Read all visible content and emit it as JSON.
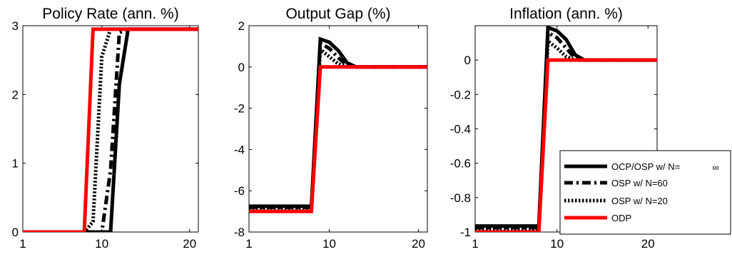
{
  "chart_data": [
    {
      "type": "line",
      "title": "Policy Rate (ann. %)",
      "xlabel": "",
      "ylabel": "",
      "xlim": [
        1,
        21
      ],
      "ylim": [
        0,
        3
      ],
      "xticks": [
        1,
        10,
        20
      ],
      "yticks": [
        0,
        1,
        2,
        3
      ],
      "ytick_labels": [
        "0",
        "1",
        "2",
        "3"
      ],
      "grid": false,
      "x": [
        1,
        2,
        3,
        4,
        5,
        6,
        7,
        8,
        9,
        10,
        11,
        12,
        13,
        14,
        15,
        16,
        17,
        18,
        19,
        20,
        21
      ],
      "series": [
        {
          "name": "OCP/OSP w/ N= ∞",
          "values": [
            0,
            0,
            0,
            0,
            0,
            0,
            0,
            0,
            0,
            0,
            0,
            2.15,
            2.95,
            2.95,
            2.95,
            2.95,
            2.95,
            2.95,
            2.95,
            2.95,
            2.95
          ]
        },
        {
          "name": "OSP w/ N=60",
          "values": [
            0,
            0,
            0,
            0,
            0,
            0,
            0,
            0,
            0,
            0,
            0.9,
            2.9,
            2.95,
            2.95,
            2.95,
            2.95,
            2.95,
            2.95,
            2.95,
            2.95,
            2.95
          ]
        },
        {
          "name": "OSP w/ N=20",
          "values": [
            0,
            0,
            0,
            0,
            0,
            0,
            0,
            0,
            0.15,
            2.55,
            2.95,
            2.95,
            2.95,
            2.95,
            2.95,
            2.95,
            2.95,
            2.95,
            2.95,
            2.95,
            2.95
          ]
        },
        {
          "name": "ODP",
          "values": [
            0,
            0,
            0,
            0,
            0,
            0,
            0,
            0,
            2.95,
            2.95,
            2.95,
            2.95,
            2.95,
            2.95,
            2.95,
            2.95,
            2.95,
            2.95,
            2.95,
            2.95,
            2.95
          ]
        }
      ]
    },
    {
      "type": "line",
      "title": "Output Gap (%)",
      "xlabel": "",
      "ylabel": "",
      "xlim": [
        1,
        21
      ],
      "ylim": [
        -8,
        2
      ],
      "xticks": [
        1,
        10,
        20
      ],
      "yticks": [
        -8,
        -6,
        -4,
        -2,
        0,
        2
      ],
      "ytick_labels": [
        "-8",
        "-6",
        "-4",
        "-2",
        "0",
        "2"
      ],
      "grid": false,
      "x": [
        1,
        2,
        3,
        4,
        5,
        6,
        7,
        8,
        9,
        10,
        11,
        12,
        13,
        14,
        15,
        16,
        17,
        18,
        19,
        20,
        21
      ],
      "series": [
        {
          "name": "OCP/OSP w/ N= ∞",
          "values": [
            -6.75,
            -6.75,
            -6.75,
            -6.75,
            -6.75,
            -6.75,
            -6.75,
            -6.75,
            1.35,
            1.2,
            0.8,
            0.2,
            0,
            0,
            0,
            0,
            0,
            0,
            0,
            0,
            0
          ]
        },
        {
          "name": "OSP w/ N=60",
          "values": [
            -6.8,
            -6.8,
            -6.8,
            -6.8,
            -6.8,
            -6.8,
            -6.8,
            -6.8,
            1.15,
            0.9,
            0.45,
            0.08,
            0,
            0,
            0,
            0,
            0,
            0,
            0,
            0,
            0
          ]
        },
        {
          "name": "OSP w/ N=20",
          "values": [
            -6.9,
            -6.9,
            -6.9,
            -6.9,
            -6.9,
            -6.9,
            -6.9,
            -6.9,
            0.85,
            0.5,
            0.15,
            0,
            0,
            0,
            0,
            0,
            0,
            0,
            0,
            0,
            0
          ]
        },
        {
          "name": "ODP",
          "values": [
            -7.0,
            -7.0,
            -7.0,
            -7.0,
            -7.0,
            -7.0,
            -7.0,
            -7.0,
            0,
            0,
            0,
            0,
            0,
            0,
            0,
            0,
            0,
            0,
            0,
            0,
            0
          ]
        }
      ]
    },
    {
      "type": "line",
      "title": "Inflation (ann. %)",
      "xlabel": "",
      "ylabel": "",
      "xlim": [
        1,
        21
      ],
      "ylim": [
        -1,
        0.2
      ],
      "xticks": [
        1,
        10,
        20
      ],
      "yticks": [
        -1,
        -0.8,
        -0.6,
        -0.4,
        -0.2,
        0
      ],
      "ytick_labels": [
        "-1",
        "-0.8",
        "-0.6",
        "-0.4",
        "-0.2",
        "0"
      ],
      "grid": false,
      "legend": "bottom-right",
      "x": [
        1,
        2,
        3,
        4,
        5,
        6,
        7,
        8,
        9,
        10,
        11,
        12,
        13,
        14,
        15,
        16,
        17,
        18,
        19,
        20,
        21
      ],
      "series": [
        {
          "name": "OCP/OSP w/ N= ∞",
          "values": [
            -0.965,
            -0.965,
            -0.965,
            -0.965,
            -0.965,
            -0.965,
            -0.965,
            -0.965,
            0.19,
            0.17,
            0.12,
            0.03,
            0,
            0,
            0,
            0,
            0,
            0,
            0,
            0,
            0
          ]
        },
        {
          "name": "OSP w/ N=60",
          "values": [
            -0.975,
            -0.975,
            -0.975,
            -0.975,
            -0.975,
            -0.975,
            -0.975,
            -0.975,
            0.16,
            0.13,
            0.07,
            0.01,
            0,
            0,
            0,
            0,
            0,
            0,
            0,
            0,
            0
          ]
        },
        {
          "name": "OSP w/ N=20",
          "values": [
            -0.985,
            -0.985,
            -0.985,
            -0.985,
            -0.985,
            -0.985,
            -0.985,
            -0.985,
            0.11,
            0.07,
            0.02,
            0,
            0,
            0,
            0,
            0,
            0,
            0,
            0,
            0,
            0
          ]
        },
        {
          "name": "ODP",
          "values": [
            -1.0,
            -1.0,
            -1.0,
            -1.0,
            -1.0,
            -1.0,
            -1.0,
            -1.0,
            0,
            0,
            0,
            0,
            0,
            0,
            0,
            0,
            0,
            0,
            0,
            0,
            0
          ]
        }
      ]
    }
  ],
  "legend": [
    {
      "label": "OCP/OSP w/ N=",
      "symbol": "∞",
      "color": "#000000",
      "style": "solid"
    },
    {
      "label": "OSP w/ N=60",
      "color": "#000000",
      "style": "dashdot"
    },
    {
      "label": "OSP w/ N=20",
      "color": "#000000",
      "style": "dotted"
    },
    {
      "label": "ODP",
      "color": "#ff0000",
      "style": "solid"
    }
  ],
  "colors": {
    "black": "#000000",
    "red": "#ff0000"
  }
}
